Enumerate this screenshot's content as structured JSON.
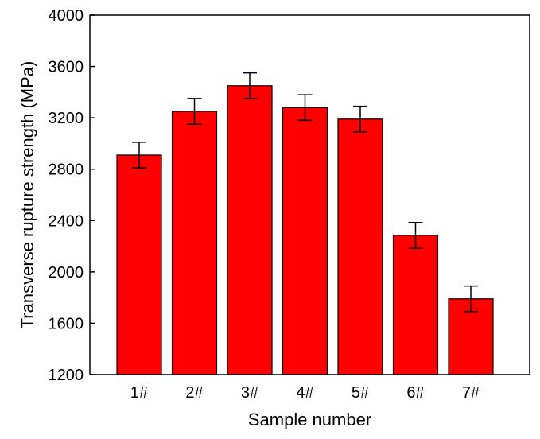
{
  "chart_data": {
    "type": "bar",
    "categories": [
      "1#",
      "2#",
      "3#",
      "4#",
      "5#",
      "6#",
      "7#"
    ],
    "values": [
      2910,
      3250,
      3450,
      3280,
      3190,
      2285,
      1790
    ],
    "errors": [
      100,
      100,
      100,
      100,
      100,
      100,
      100
    ],
    "title": "",
    "xlabel": "Sample number",
    "ylabel": "Transverse rupture strength (MPa)",
    "ylim": [
      1200,
      4000
    ],
    "yticks": [
      1200,
      1600,
      2000,
      2400,
      2800,
      3200,
      3600,
      4000
    ],
    "grid": false,
    "bar_color": "#ff0000",
    "edge_color": "#000000"
  }
}
